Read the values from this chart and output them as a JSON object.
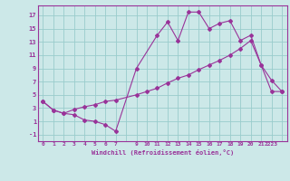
{
  "xlabel": "Windchill (Refroidissement éolien,°C)",
  "background_color": "#cce8e8",
  "grid_color": "#99cccc",
  "line_color": "#993399",
  "spine_color": "#993399",
  "xlim": [
    -0.5,
    23.5
  ],
  "ylim": [
    -2.0,
    18.5
  ],
  "xtick_labels": [
    "0",
    "1",
    "2",
    "3",
    "4",
    "5",
    "6",
    "7",
    "",
    "9",
    "10",
    "11",
    "12",
    "13",
    "14",
    "15",
    "16",
    "17",
    "18",
    "19",
    "20",
    "21",
    "2223"
  ],
  "yticks": [
    -1,
    1,
    3,
    5,
    7,
    9,
    11,
    13,
    15,
    17
  ],
  "curve1_x": [
    0,
    1,
    2,
    3,
    4,
    5,
    6,
    7,
    9,
    11,
    12,
    13,
    14,
    15,
    16,
    17,
    18,
    19,
    20,
    21,
    22,
    23
  ],
  "curve1_y": [
    4.0,
    2.7,
    2.2,
    2.0,
    1.2,
    1.0,
    0.5,
    -0.5,
    9.0,
    14.0,
    16.0,
    13.2,
    17.5,
    17.5,
    15.0,
    15.8,
    16.2,
    13.2,
    14.0,
    9.5,
    7.2,
    5.5
  ],
  "curve2_x": [
    0,
    1,
    2,
    3,
    4,
    5,
    6,
    7,
    9,
    10,
    11,
    12,
    13,
    14,
    15,
    16,
    17,
    18,
    19,
    20,
    21,
    22,
    23
  ],
  "curve2_y": [
    4.0,
    2.7,
    2.2,
    2.8,
    3.2,
    3.5,
    4.0,
    4.2,
    5.0,
    5.5,
    6.0,
    6.8,
    7.5,
    8.0,
    8.8,
    9.5,
    10.2,
    11.0,
    12.0,
    13.2,
    9.5,
    5.5,
    5.5
  ]
}
